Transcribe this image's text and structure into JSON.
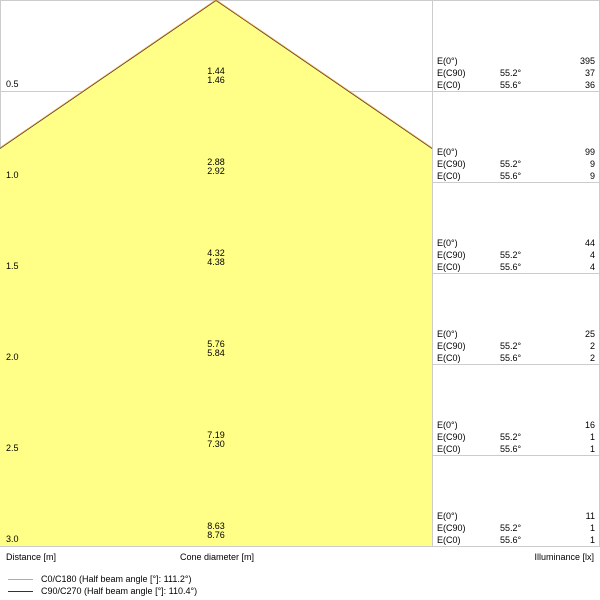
{
  "colors": {
    "cone_fill": "#ffff88",
    "c0_line": "#f0a040",
    "c90_line": "#333333",
    "grid": "#cccccc"
  },
  "headers": {
    "distance": "Distance [m]",
    "cone_diameter": "Cone diameter [m]",
    "illuminance": "Illuminance [lx]"
  },
  "legend": [
    {
      "label": "C0/C180 (Half beam angle [°]: 111.2°)"
    },
    {
      "label": "C90/C270 (Half beam angle [°]: 110.4°)"
    }
  ],
  "rows": [
    {
      "distance": "0.5",
      "d1": "1.44",
      "d2": "1.46",
      "e0_label": "E(0°)",
      "e0": "395",
      "ec90_label": "E(C90)",
      "ec90_angle": "55.2°",
      "ec90": "37",
      "ec0_label": "E(C0)",
      "ec0_angle": "55.6°",
      "ec0": "36"
    },
    {
      "distance": "1.0",
      "d1": "2.88",
      "d2": "2.92",
      "e0_label": "E(0°)",
      "e0": "99",
      "ec90_label": "E(C90)",
      "ec90_angle": "55.2°",
      "ec90": "9",
      "ec0_label": "E(C0)",
      "ec0_angle": "55.6°",
      "ec0": "9"
    },
    {
      "distance": "1.5",
      "d1": "4.32",
      "d2": "4.38",
      "e0_label": "E(0°)",
      "e0": "44",
      "ec90_label": "E(C90)",
      "ec90_angle": "55.2°",
      "ec90": "4",
      "ec0_label": "E(C0)",
      "ec0_angle": "55.6°",
      "ec0": "4"
    },
    {
      "distance": "2.0",
      "d1": "5.76",
      "d2": "5.84",
      "e0_label": "E(0°)",
      "e0": "25",
      "ec90_label": "E(C90)",
      "ec90_angle": "55.2°",
      "ec90": "2",
      "ec0_label": "E(C0)",
      "ec0_angle": "55.6°",
      "ec0": "2"
    },
    {
      "distance": "2.5",
      "d1": "7.19",
      "d2": "7.30",
      "e0_label": "E(0°)",
      "e0": "16",
      "ec90_label": "E(C90)",
      "ec90_angle": "55.2°",
      "ec90": "1",
      "ec0_label": "E(C0)",
      "ec0_angle": "55.6°",
      "ec0": "1"
    },
    {
      "distance": "3.0",
      "d1": "8.63",
      "d2": "8.76",
      "e0_label": "E(0°)",
      "e0": "11",
      "ec90_label": "E(C90)",
      "ec90_angle": "55.2°",
      "ec90": "1",
      "ec0_label": "E(C0)",
      "ec0_angle": "55.6°",
      "ec0": "1"
    }
  ]
}
